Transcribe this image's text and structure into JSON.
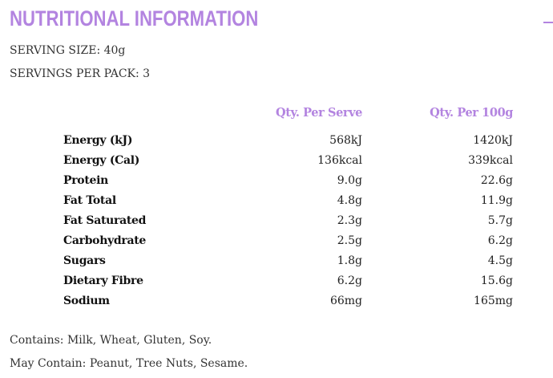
{
  "title": "NUTRITIONAL INFORMATION",
  "toggle_icon": "minus-icon",
  "accent_color": "#b384e0",
  "serving_size": "SERVING SIZE: 40g",
  "servings_per_pack": "SERVINGS PER PACK: 3",
  "table": {
    "headers": [
      "Qty. Per Serve",
      "Qty. Per 100g"
    ],
    "rows": [
      {
        "label": "Energy (kJ)",
        "per_serve": "568kJ",
        "per_100g": "1420kJ"
      },
      {
        "label": "Energy (Cal)",
        "per_serve": "136kcal",
        "per_100g": "339kcal"
      },
      {
        "label": "Protein",
        "per_serve": "9.0g",
        "per_100g": "22.6g"
      },
      {
        "label": "Fat Total",
        "per_serve": "4.8g",
        "per_100g": "11.9g"
      },
      {
        "label": "Fat Saturated",
        "per_serve": "2.3g",
        "per_100g": "5.7g"
      },
      {
        "label": "Carbohydrate",
        "per_serve": "2.5g",
        "per_100g": "6.2g"
      },
      {
        "label": "Sugars",
        "per_serve": "1.8g",
        "per_100g": "4.5g"
      },
      {
        "label": "Dietary Fibre",
        "per_serve": "6.2g",
        "per_100g": "15.6g"
      },
      {
        "label": "Sodium",
        "per_serve": "66mg",
        "per_100g": "165mg"
      }
    ]
  },
  "contains": "Contains: Milk, Wheat, Gluten, Soy.",
  "may_contain": "May Contain: Peanut, Tree Nuts, Sesame."
}
